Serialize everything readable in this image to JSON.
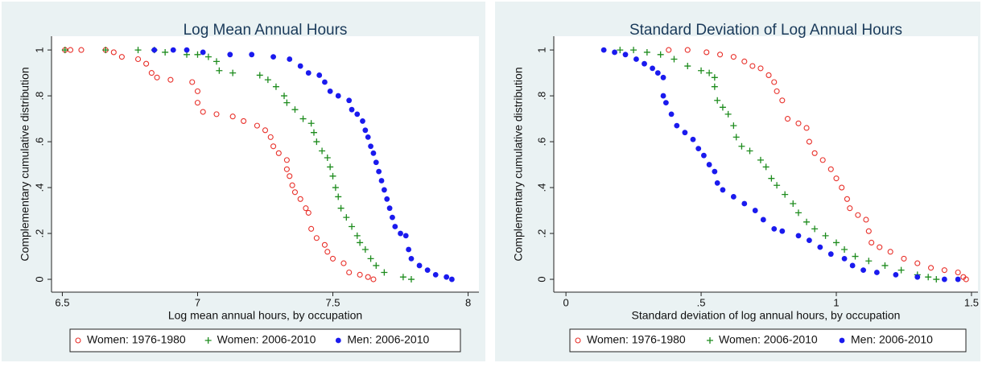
{
  "chart_data": [
    {
      "type": "scatter",
      "title": "Log Mean Annual Hours",
      "xlabel": "Log mean annual hours, by occupation",
      "ylabel": "Complementary cumulative distribution",
      "xlim": [
        6.46,
        8.04
      ],
      "ylim": [
        -0.056,
        1.06
      ],
      "xticks": [
        6.5,
        7,
        7.5,
        8
      ],
      "yticks": [
        0,
        {
          "value": 0.2,
          "label": ".2"
        },
        {
          "value": 0.4,
          "label": ".4"
        },
        {
          "value": 0.6,
          "label": ".6"
        },
        {
          "value": 0.8,
          "label": ".8"
        },
        1
      ],
      "series": [
        {
          "name": "Women: 1976-1980",
          "color": "#e8302a",
          "marker": "hollow circle",
          "x": [
            6.51,
            6.53,
            6.57,
            6.66,
            6.69,
            6.72,
            6.78,
            6.81,
            6.83,
            6.85,
            6.9,
            6.98,
            7.0,
            7.0,
            7.02,
            7.07,
            7.13,
            7.17,
            7.22,
            7.25,
            7.27,
            7.28,
            7.3,
            7.33,
            7.33,
            7.34,
            7.35,
            7.36,
            7.38,
            7.4,
            7.41,
            7.42,
            7.44,
            7.47,
            7.48,
            7.5,
            7.54,
            7.56,
            7.6,
            7.63,
            7.65
          ],
          "y": [
            1,
            1,
            1,
            1,
            0.99,
            0.97,
            0.96,
            0.94,
            0.9,
            0.88,
            0.87,
            0.86,
            0.82,
            0.77,
            0.73,
            0.72,
            0.71,
            0.69,
            0.67,
            0.65,
            0.62,
            0.58,
            0.55,
            0.52,
            0.48,
            0.45,
            0.41,
            0.38,
            0.35,
            0.31,
            0.29,
            0.22,
            0.18,
            0.15,
            0.12,
            0.09,
            0.07,
            0.03,
            0.02,
            0.01,
            0
          ]
        },
        {
          "name": "Women: 2006-2010",
          "color": "#1e8c1e",
          "marker": "plus",
          "x": [
            6.51,
            6.66,
            6.78,
            6.84,
            6.88,
            6.96,
            7.0,
            7.04,
            7.07,
            7.08,
            7.13,
            7.23,
            7.26,
            7.29,
            7.32,
            7.33,
            7.36,
            7.39,
            7.42,
            7.43,
            7.44,
            7.46,
            7.48,
            7.49,
            7.5,
            7.51,
            7.52,
            7.53,
            7.55,
            7.57,
            7.59,
            7.6,
            7.62,
            7.64,
            7.66,
            7.69,
            7.76,
            7.79
          ],
          "y": [
            1,
            1,
            1,
            1,
            0.99,
            0.98,
            0.98,
            0.97,
            0.95,
            0.91,
            0.9,
            0.89,
            0.87,
            0.84,
            0.8,
            0.77,
            0.74,
            0.7,
            0.68,
            0.64,
            0.6,
            0.56,
            0.53,
            0.49,
            0.45,
            0.4,
            0.36,
            0.31,
            0.27,
            0.23,
            0.19,
            0.16,
            0.13,
            0.09,
            0.06,
            0.03,
            0.01,
            0
          ]
        },
        {
          "name": "Men: 2006-2010",
          "color": "#1a1aee",
          "marker": "filled circle",
          "x": [
            6.84,
            6.91,
            6.96,
            7.02,
            7.12,
            7.2,
            7.28,
            7.34,
            7.38,
            7.41,
            7.45,
            7.47,
            7.49,
            7.52,
            7.56,
            7.57,
            7.59,
            7.61,
            7.62,
            7.63,
            7.64,
            7.65,
            7.66,
            7.67,
            7.68,
            7.69,
            7.7,
            7.71,
            7.72,
            7.73,
            7.75,
            7.77,
            7.78,
            7.79,
            7.82,
            7.85,
            7.88,
            7.92,
            7.94
          ],
          "y": [
            1,
            1,
            1,
            0.99,
            0.98,
            0.98,
            0.97,
            0.96,
            0.93,
            0.9,
            0.89,
            0.86,
            0.82,
            0.8,
            0.78,
            0.74,
            0.72,
            0.69,
            0.65,
            0.62,
            0.58,
            0.55,
            0.51,
            0.47,
            0.43,
            0.39,
            0.35,
            0.31,
            0.27,
            0.23,
            0.2,
            0.19,
            0.13,
            0.09,
            0.06,
            0.04,
            0.02,
            0.01,
            0
          ]
        }
      ]
    },
    {
      "type": "scatter",
      "title": "Standard Deviation of Log Annual Hours",
      "xlabel": "Standard deviation of log annual hours, by occupation",
      "ylabel": "Complementary cumulative distribution",
      "xlim": [
        -0.045,
        1.524
      ],
      "ylim": [
        -0.056,
        1.06
      ],
      "xticks": [
        0,
        {
          "value": 0.5,
          "label": ".5"
        },
        1,
        1.5
      ],
      "yticks": [
        0,
        {
          "value": 0.2,
          "label": ".2"
        },
        {
          "value": 0.4,
          "label": ".4"
        },
        {
          "value": 0.6,
          "label": ".6"
        },
        {
          "value": 0.8,
          "label": ".8"
        },
        1
      ],
      "series": [
        {
          "name": "Women: 1976-1980",
          "color": "#e8302a",
          "marker": "hollow circle",
          "x": [
            0.38,
            0.45,
            0.52,
            0.57,
            0.62,
            0.66,
            0.69,
            0.72,
            0.75,
            0.77,
            0.78,
            0.8,
            0.82,
            0.86,
            0.89,
            0.9,
            0.92,
            0.95,
            0.98,
            1.0,
            1.02,
            1.04,
            1.05,
            1.08,
            1.11,
            1.12,
            1.13,
            1.16,
            1.2,
            1.25,
            1.3,
            1.35,
            1.4,
            1.45,
            1.47,
            1.48
          ],
          "y": [
            1,
            1,
            0.99,
            0.98,
            0.97,
            0.95,
            0.93,
            0.92,
            0.89,
            0.86,
            0.82,
            0.78,
            0.7,
            0.68,
            0.66,
            0.6,
            0.55,
            0.52,
            0.48,
            0.44,
            0.4,
            0.35,
            0.31,
            0.28,
            0.26,
            0.21,
            0.16,
            0.14,
            0.12,
            0.09,
            0.07,
            0.05,
            0.04,
            0.03,
            0.01,
            0
          ]
        },
        {
          "name": "Women: 2006-2010",
          "color": "#1e8c1e",
          "marker": "plus",
          "x": [
            0.2,
            0.25,
            0.3,
            0.35,
            0.4,
            0.45,
            0.5,
            0.53,
            0.55,
            0.55,
            0.56,
            0.58,
            0.6,
            0.62,
            0.63,
            0.65,
            0.68,
            0.72,
            0.74,
            0.76,
            0.78,
            0.81,
            0.84,
            0.86,
            0.89,
            0.92,
            0.96,
            1.0,
            1.03,
            1.07,
            1.12,
            1.18,
            1.24,
            1.3,
            1.34,
            1.37
          ],
          "y": [
            1,
            1,
            0.99,
            0.98,
            0.96,
            0.93,
            0.91,
            0.9,
            0.88,
            0.84,
            0.78,
            0.75,
            0.72,
            0.67,
            0.62,
            0.58,
            0.56,
            0.52,
            0.49,
            0.44,
            0.41,
            0.37,
            0.33,
            0.29,
            0.25,
            0.22,
            0.19,
            0.16,
            0.13,
            0.1,
            0.08,
            0.06,
            0.04,
            0.02,
            0.01,
            0
          ]
        },
        {
          "name": "Men: 2006-2010",
          "color": "#1a1aee",
          "marker": "filled circle",
          "x": [
            0.14,
            0.18,
            0.22,
            0.26,
            0.29,
            0.32,
            0.34,
            0.36,
            0.36,
            0.37,
            0.39,
            0.41,
            0.44,
            0.47,
            0.49,
            0.51,
            0.53,
            0.55,
            0.56,
            0.58,
            0.62,
            0.66,
            0.7,
            0.73,
            0.77,
            0.8,
            0.86,
            0.9,
            0.94,
            0.98,
            1.03,
            1.06,
            1.1,
            1.15,
            1.22,
            1.3,
            1.4,
            1.45
          ],
          "y": [
            1,
            0.99,
            0.98,
            0.96,
            0.94,
            0.92,
            0.9,
            0.88,
            0.8,
            0.77,
            0.72,
            0.67,
            0.64,
            0.61,
            0.57,
            0.54,
            0.5,
            0.47,
            0.42,
            0.39,
            0.36,
            0.33,
            0.3,
            0.26,
            0.22,
            0.21,
            0.19,
            0.17,
            0.14,
            0.11,
            0.09,
            0.06,
            0.04,
            0.03,
            0.02,
            0.01,
            0,
            0
          ]
        }
      ]
    }
  ]
}
